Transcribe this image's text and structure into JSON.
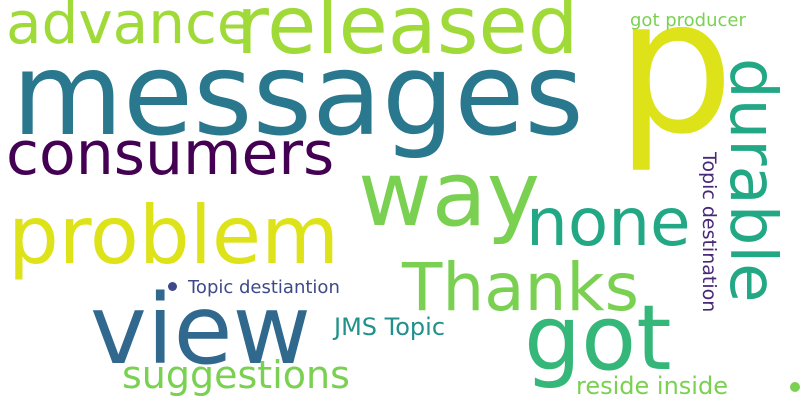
{
  "words": [
    {
      "key": "messages",
      "text": "messages",
      "color": "#2a788e"
    },
    {
      "key": "p",
      "text": "p",
      "color": "#dde318"
    },
    {
      "key": "released",
      "text": "released",
      "color": "#a0da39"
    },
    {
      "key": "advance",
      "text": "advance",
      "color": "#a0da39"
    },
    {
      "key": "consumers",
      "text": "consumers",
      "color": "#440154"
    },
    {
      "key": "problem",
      "text": "problem",
      "color": "#dde318"
    },
    {
      "key": "way",
      "text": "way",
      "color": "#7ad151"
    },
    {
      "key": "none",
      "text": "none",
      "color": "#22a884"
    },
    {
      "key": "durable",
      "text": "durable",
      "color": "#22a884"
    },
    {
      "key": "thanks",
      "text": "Thanks",
      "color": "#7ad151"
    },
    {
      "key": "view",
      "text": "view",
      "color": "#31688e"
    },
    {
      "key": "got",
      "text": "got",
      "color": "#35b779"
    },
    {
      "key": "suggestions",
      "text": "suggestions",
      "color": "#7ad151"
    },
    {
      "key": "jms_topic",
      "text": "JMS Topic",
      "color": "#21918c"
    },
    {
      "key": "topic_destiantion",
      "text": "Topic destiantion",
      "color": "#3e4989"
    },
    {
      "key": "topic_destination",
      "text": "Topic destination",
      "color": "#482878"
    },
    {
      "key": "reside_inside",
      "text": "reside inside",
      "color": "#7ad151"
    },
    {
      "key": "got_producer",
      "text": "got producer",
      "color": "#7ad151"
    }
  ]
}
